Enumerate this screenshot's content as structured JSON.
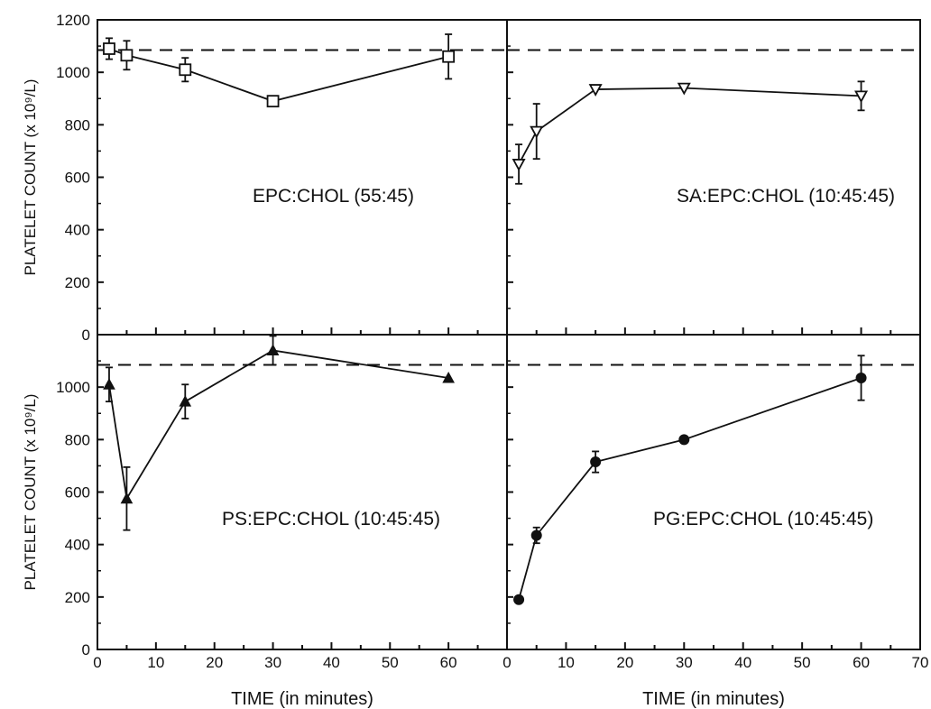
{
  "chart_data": [
    {
      "type": "line",
      "panel": "top-left",
      "label": "EPC:CHOL (55:45)",
      "marker": "open-square",
      "xlim": [
        0,
        70
      ],
      "ylim": [
        0,
        1200
      ],
      "ylabel": "PLATELET COUNT (x 10⁹/L)",
      "xlabel": "",
      "baseline": 1085,
      "series": [
        {
          "x": [
            2,
            5,
            15,
            30,
            60
          ],
          "y": [
            1090,
            1065,
            1010,
            890,
            1060
          ],
          "err": [
            40,
            55,
            45,
            0,
            85
          ]
        }
      ]
    },
    {
      "type": "line",
      "panel": "top-right",
      "label": "SA:EPC:CHOL (10:45:45)",
      "marker": "open-triangle-down",
      "xlim": [
        0,
        70
      ],
      "ylim": [
        0,
        1200
      ],
      "ylabel": "",
      "xlabel": "",
      "baseline": 1085,
      "series": [
        {
          "x": [
            2,
            5,
            15,
            30,
            60
          ],
          "y": [
            650,
            775,
            935,
            940,
            910
          ],
          "err": [
            75,
            105,
            0,
            0,
            55
          ]
        }
      ]
    },
    {
      "type": "line",
      "panel": "bottom-left",
      "label": "PS:EPC:CHOL (10:45:45)",
      "marker": "filled-triangle",
      "xlim": [
        0,
        70
      ],
      "ylim": [
        0,
        1200
      ],
      "ylabel": "PLATELET COUNT (x 10⁹/L)",
      "xlabel": "TIME (in minutes)",
      "baseline": 1085,
      "series": [
        {
          "x": [
            2,
            5,
            15,
            30,
            60
          ],
          "y": [
            1010,
            575,
            945,
            1140,
            1035
          ],
          "err": [
            65,
            120,
            65,
            55,
            0
          ]
        }
      ]
    },
    {
      "type": "line",
      "panel": "bottom-right",
      "label": "PG:EPC:CHOL (10:45:45)",
      "marker": "filled-circle",
      "xlim": [
        0,
        70
      ],
      "ylim": [
        0,
        1200
      ],
      "ylabel": "",
      "xlabel": "TIME (in minutes)",
      "baseline": 1085,
      "series": [
        {
          "x": [
            2,
            5,
            15,
            30,
            60
          ],
          "y": [
            190,
            435,
            715,
            800,
            1035
          ],
          "err": [
            0,
            30,
            40,
            0,
            85
          ]
        }
      ]
    }
  ],
  "axes": {
    "y_ticks_top": [
      "1200",
      "1000",
      "800",
      "600",
      "400",
      "200",
      "0"
    ],
    "y_ticks_bottom": [
      "1000",
      "800",
      "600",
      "400",
      "200",
      "0"
    ],
    "x_ticks_left": [
      "0",
      "10",
      "20",
      "30",
      "40",
      "50",
      "60"
    ],
    "x_ticks_right": [
      "0",
      "10",
      "20",
      "30",
      "40",
      "50",
      "60",
      "70"
    ]
  }
}
